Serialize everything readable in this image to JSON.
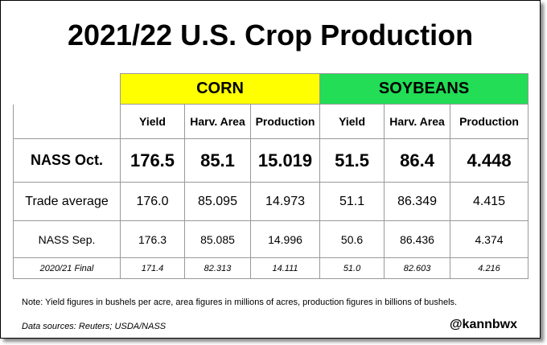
{
  "title": "2021/22 U.S. Crop Production",
  "table": {
    "groups": [
      "CORN",
      "SOYBEANS"
    ],
    "columns": [
      "Yield",
      "Harv. Area",
      "Production",
      "Yield",
      "Harv. Area",
      "Production"
    ],
    "rows": [
      [
        "NASS Oct.",
        "176.5",
        "85.1",
        "15.019",
        "51.5",
        "86.4",
        "4.448"
      ],
      [
        "Trade average",
        "176.0",
        "85.095",
        "14.973",
        "51.1",
        "86.349",
        "4.415"
      ],
      [
        "NASS Sep.",
        "176.3",
        "85.085",
        "14.996",
        "50.6",
        "86.436",
        "4.374"
      ],
      [
        "2020/21 Final",
        "171.4",
        "82.313",
        "14.111",
        "51.0",
        "82.603",
        "4.216"
      ]
    ]
  },
  "note": "Note: Yield figures in bushels per acre, area figures in millions of acres, production figures in billions of bushels.",
  "sources": "Data sources: Reuters; USDA/NASS",
  "handle": "@kannbwx"
}
